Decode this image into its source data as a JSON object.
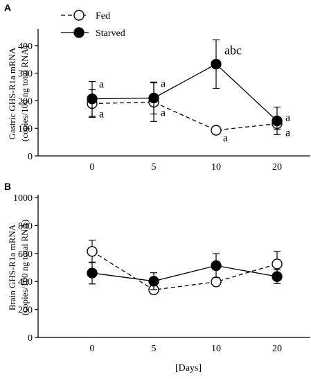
{
  "figure": {
    "panel_a_letter": "A",
    "panel_b_letter": "B",
    "shared_xlabel": "[Days]"
  },
  "chart_data": [
    {
      "type": "line",
      "panel": "A",
      "ylabel_line1": "Gastric GHS-R1a mRNA",
      "ylabel_line2": "(copies/100 ng total RNA)",
      "xlabel": "",
      "categories": [
        "0",
        "5",
        "10",
        "20"
      ],
      "ylim": [
        0,
        450
      ],
      "yticks": [
        0,
        100,
        200,
        300,
        400
      ],
      "legend_position": "top-left",
      "series": [
        {
          "name": "Fed",
          "marker": "open-circle",
          "line_style": "dashed",
          "values": [
            190,
            195,
            93,
            117
          ],
          "errors": [
            50,
            70,
            12,
            20
          ],
          "annotations": [
            "a",
            "a",
            "a",
            "a"
          ]
        },
        {
          "name": "Starved",
          "marker": "filled-circle",
          "line_style": "solid",
          "values": [
            207,
            210,
            333,
            127
          ],
          "errors": [
            63,
            58,
            88,
            50
          ],
          "annotations": [
            "a",
            "a",
            "abc",
            "a"
          ]
        }
      ]
    },
    {
      "type": "line",
      "panel": "B",
      "ylabel_line1": "Brain GHS-R1a mRNA",
      "ylabel_line2": "(copies/100 ng total RNA)",
      "xlabel": "[Days]",
      "categories": [
        "0",
        "5",
        "10",
        "20"
      ],
      "ylim": [
        0,
        1000
      ],
      "yticks": [
        0,
        200,
        400,
        600,
        800,
        1000
      ],
      "series": [
        {
          "name": "Fed",
          "marker": "open-circle",
          "line_style": "dashed",
          "values": [
            615,
            340,
            397,
            525
          ],
          "errors": [
            80,
            25,
            30,
            90
          ]
        },
        {
          "name": "Starved",
          "marker": "filled-circle",
          "line_style": "solid",
          "values": [
            460,
            402,
            513,
            435
          ],
          "errors": [
            78,
            60,
            85,
            50
          ]
        }
      ]
    }
  ]
}
